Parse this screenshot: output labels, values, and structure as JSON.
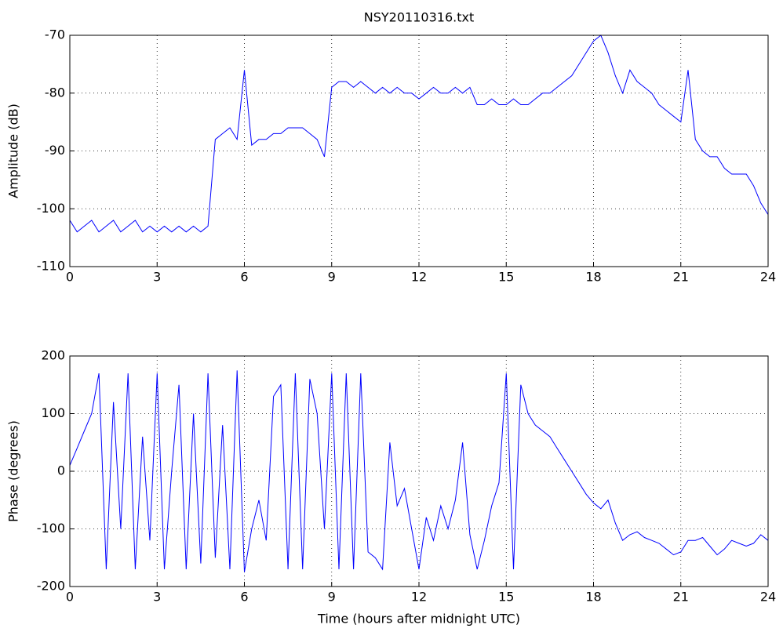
{
  "chart_data": [
    {
      "type": "line",
      "title": "NSY20110316.txt",
      "y_label": "Amplitude (dB)",
      "grid": true,
      "x": [
        0,
        0.25,
        0.5,
        0.75,
        1,
        1.25,
        1.5,
        1.75,
        2,
        2.25,
        2.5,
        2.75,
        3,
        3.25,
        3.5,
        3.75,
        4,
        4.25,
        4.5,
        4.75,
        5,
        5.25,
        5.5,
        5.75,
        6,
        6.25,
        6.5,
        6.75,
        7,
        7.25,
        7.5,
        7.75,
        8,
        8.25,
        8.5,
        8.75,
        9,
        9.25,
        9.5,
        9.75,
        10,
        10.25,
        10.5,
        10.75,
        11,
        11.25,
        11.5,
        11.75,
        12,
        12.25,
        12.5,
        12.75,
        13,
        13.25,
        13.5,
        13.75,
        14,
        14.25,
        14.5,
        14.75,
        15,
        15.25,
        15.5,
        15.75,
        16,
        16.25,
        16.5,
        16.75,
        17,
        17.25,
        17.5,
        17.75,
        18,
        18.25,
        18.5,
        18.75,
        19,
        19.25,
        19.5,
        19.75,
        20,
        20.25,
        20.5,
        20.75,
        21,
        21.25,
        21.5,
        21.75,
        22,
        22.25,
        22.5,
        22.75,
        23,
        23.25,
        23.5,
        23.75,
        24
      ],
      "series": [
        {
          "color": "#0000ff",
          "values": [
            -102,
            -104,
            -103,
            -102,
            -104,
            -103,
            -102,
            -104,
            -103,
            -102,
            -104,
            -103,
            -104,
            -103,
            -104,
            -103,
            -104,
            -103,
            -104,
            -103,
            -88,
            -87,
            -86,
            -88,
            -76,
            -89,
            -88,
            -88,
            -87,
            -87,
            -86,
            -86,
            -86,
            -87,
            -88,
            -91,
            -79,
            -78,
            -78,
            -79,
            -78,
            -79,
            -80,
            -79,
            -80,
            -79,
            -80,
            -80,
            -81,
            -80,
            -79,
            -80,
            -80,
            -79,
            -80,
            -79,
            -82,
            -82,
            -81,
            -82,
            -82,
            -81,
            -82,
            -82,
            -81,
            -80,
            -80,
            -79,
            -78,
            -77,
            -75,
            -73,
            -71,
            -70,
            -73,
            -77,
            -80,
            -76,
            -78,
            -79,
            -80,
            -82,
            -83,
            -84,
            -85,
            -76,
            -88,
            -90,
            -91,
            -91,
            -93,
            -94,
            -94,
            -94,
            -96,
            -99,
            -101
          ]
        }
      ],
      "xlim": [
        0,
        24
      ],
      "xticks": [
        0,
        3,
        6,
        9,
        12,
        15,
        18,
        21,
        24
      ],
      "ylim": [
        -110,
        -70
      ],
      "yticks": [
        -110,
        -100,
        -90,
        -80,
        -70
      ]
    },
    {
      "type": "line",
      "x_label": "Time (hours after midnight UTC)",
      "y_label": "Phase (degrees)",
      "grid": true,
      "x": [
        0,
        0.25,
        0.5,
        0.75,
        1,
        1.25,
        1.5,
        1.75,
        2,
        2.25,
        2.5,
        2.75,
        3,
        3.25,
        3.5,
        3.75,
        4,
        4.25,
        4.5,
        4.75,
        5,
        5.25,
        5.5,
        5.75,
        6,
        6.25,
        6.5,
        6.75,
        7,
        7.25,
        7.5,
        7.75,
        8,
        8.25,
        8.5,
        8.75,
        9,
        9.25,
        9.5,
        9.75,
        10,
        10.25,
        10.5,
        10.75,
        11,
        11.25,
        11.5,
        11.75,
        12,
        12.25,
        12.5,
        12.75,
        13,
        13.25,
        13.5,
        13.75,
        14,
        14.25,
        14.5,
        14.75,
        15,
        15.25,
        15.5,
        15.75,
        16,
        16.25,
        16.5,
        16.75,
        17,
        17.25,
        17.5,
        17.75,
        18,
        18.25,
        18.5,
        18.75,
        19,
        19.25,
        19.5,
        19.75,
        20,
        20.25,
        20.5,
        20.75,
        21,
        21.25,
        21.5,
        21.75,
        22,
        22.25,
        22.5,
        22.75,
        23,
        23.25,
        23.5,
        23.75,
        24
      ],
      "series": [
        {
          "color": "#0000ff",
          "values": [
            10,
            40,
            70,
            100,
            170,
            -170,
            120,
            -100,
            170,
            -170,
            60,
            -120,
            170,
            -170,
            0,
            150,
            -170,
            100,
            -160,
            170,
            -150,
            80,
            -170,
            175,
            -175,
            -100,
            -50,
            -120,
            130,
            150,
            -170,
            170,
            -170,
            160,
            100,
            -100,
            170,
            -170,
            170,
            -170,
            170,
            -140,
            -150,
            -170,
            50,
            -60,
            -30,
            -100,
            -170,
            -80,
            -120,
            -60,
            -100,
            -50,
            50,
            -110,
            -170,
            -120,
            -60,
            -20,
            170,
            -170,
            150,
            100,
            80,
            70,
            60,
            40,
            20,
            0,
            -20,
            -40,
            -55,
            -65,
            -50,
            -90,
            -120,
            -110,
            -105,
            -115,
            -120,
            -125,
            -135,
            -145,
            -140,
            -120,
            -120,
            -115,
            -130,
            -145,
            -135,
            -120,
            -125,
            -130,
            -125,
            -110,
            -120
          ]
        }
      ],
      "xlim": [
        0,
        24
      ],
      "xticks": [
        0,
        3,
        6,
        9,
        12,
        15,
        18,
        21,
        24
      ],
      "ylim": [
        -200,
        200
      ],
      "yticks": [
        -200,
        -100,
        0,
        100,
        200
      ]
    }
  ]
}
